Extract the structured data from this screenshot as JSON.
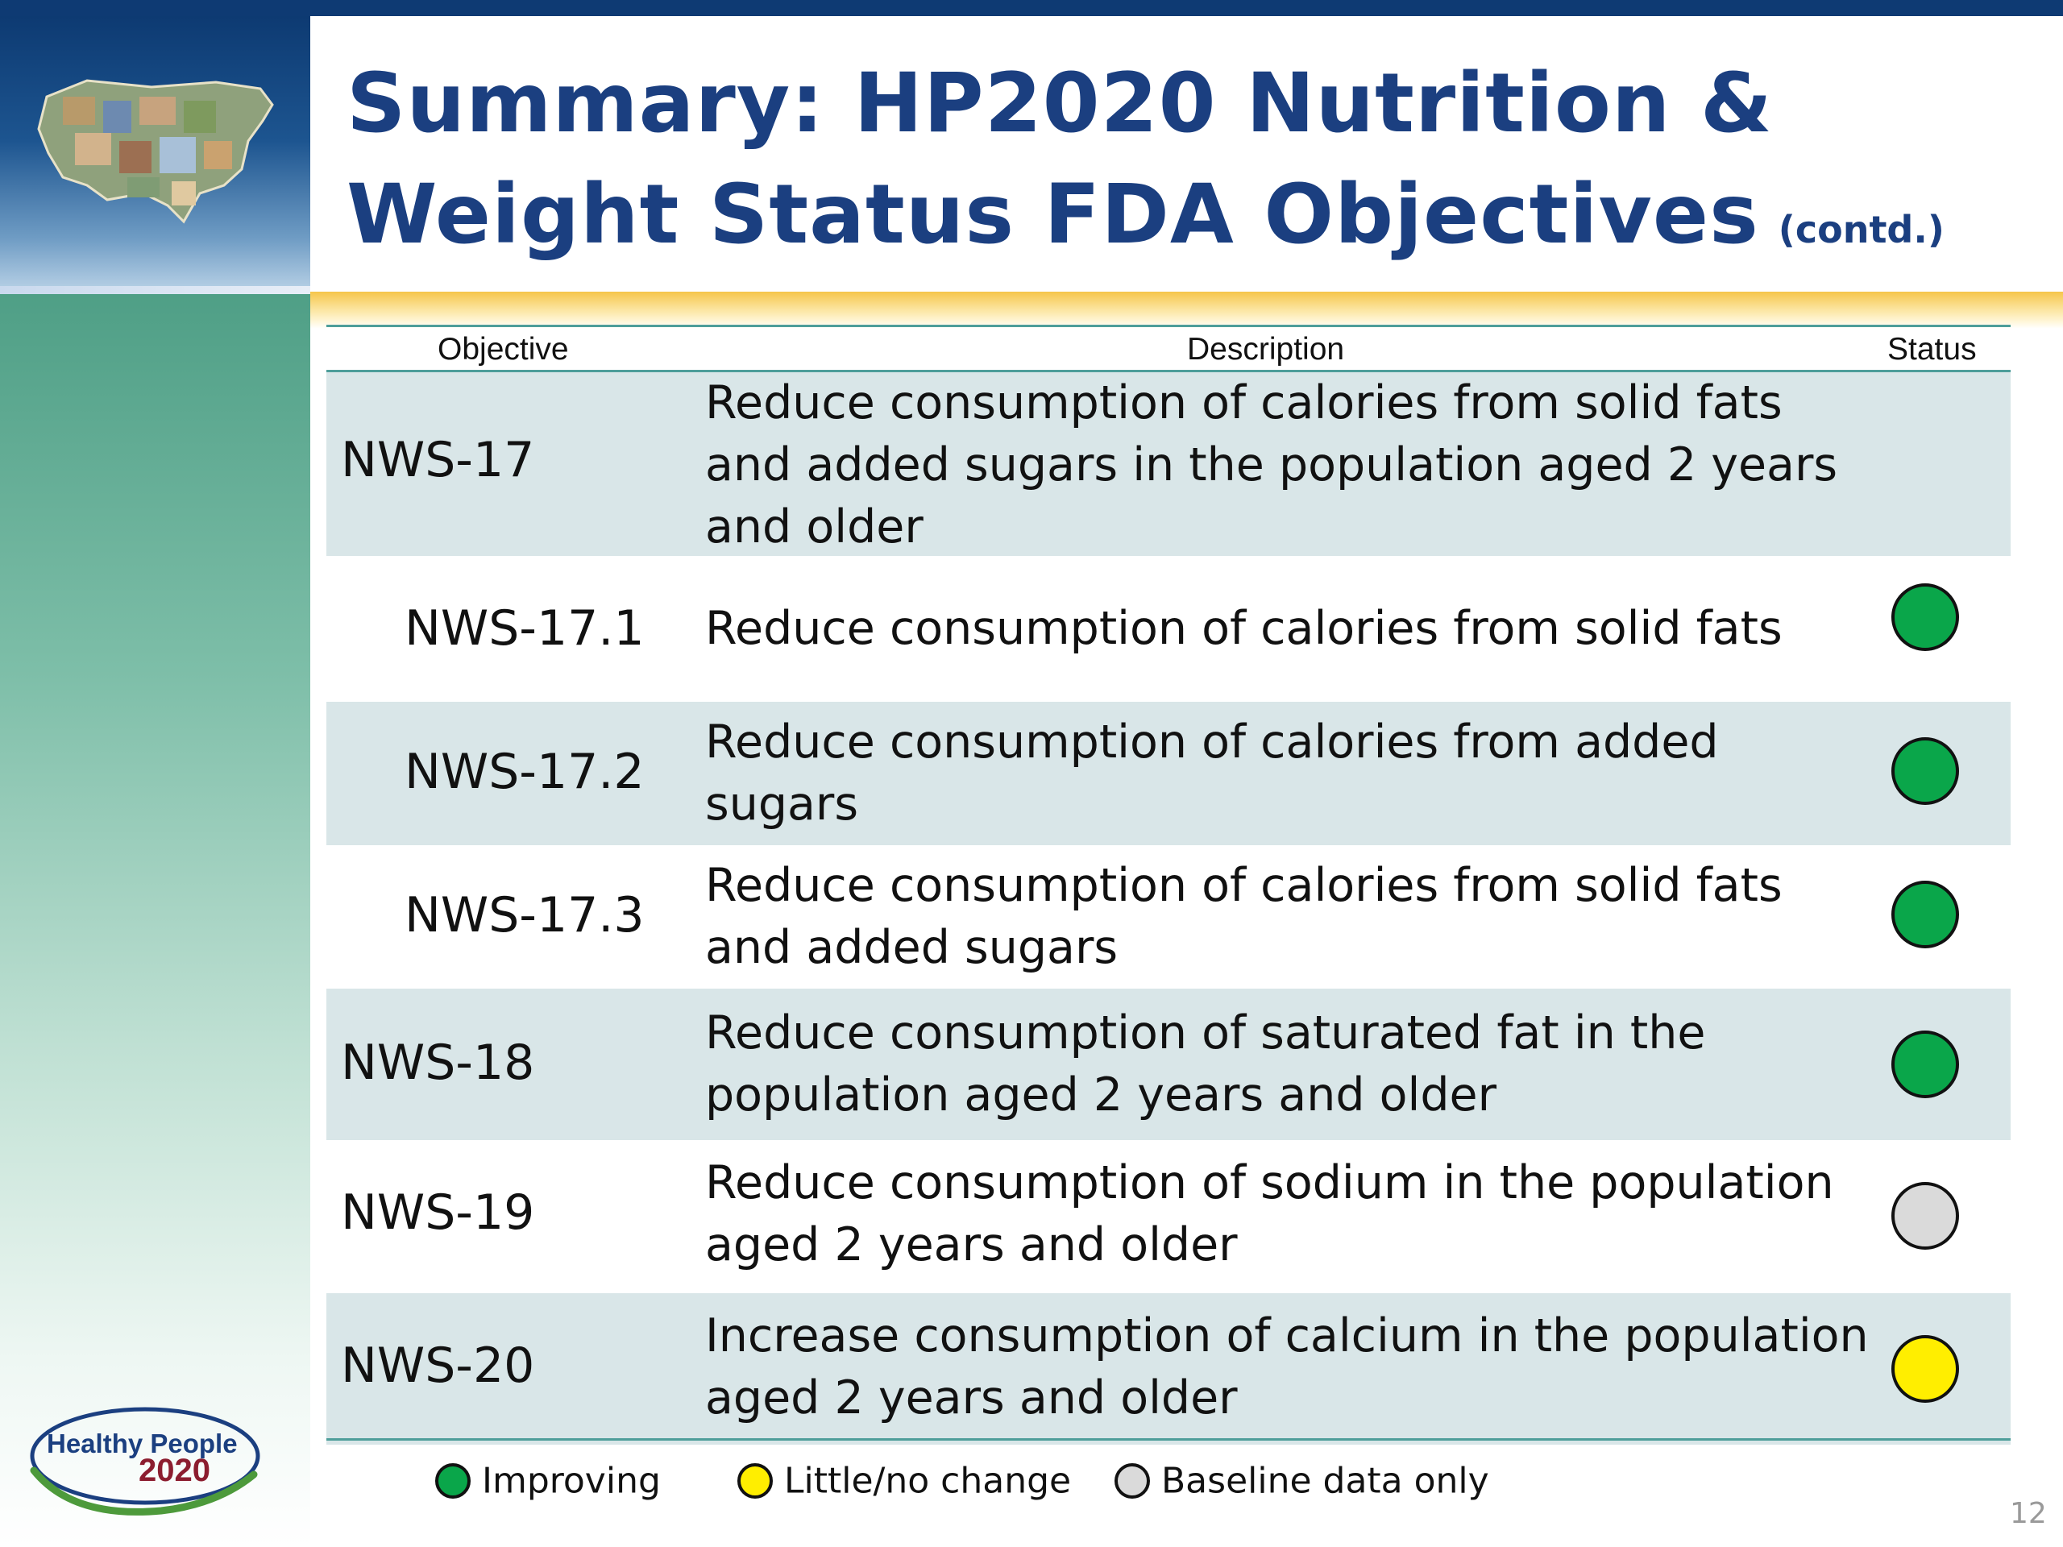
{
  "slide": {
    "title_line1": "Summary:  HP2020 Nutrition &",
    "title_line2": "Weight Status FDA Objectives",
    "title_suffix": "(contd.)",
    "page_number": "12"
  },
  "table": {
    "headers": {
      "objective": "Objective",
      "description": "Description",
      "status": "Status"
    },
    "rows": [
      {
        "objective": "NWS-17",
        "description": "Reduce consumption of calories from solid fats and added sugars in the population aged 2 years and older",
        "status": ""
      },
      {
        "objective": "NWS-17.1",
        "description": "Reduce consumption of calories from solid fats",
        "status": "Improving"
      },
      {
        "objective": "NWS-17.2",
        "description": "Reduce consumption of calories from added sugars",
        "status": "Improving"
      },
      {
        "objective": "NWS-17.3",
        "description": "Reduce consumption of calories from solid fats and added sugars",
        "status": "Improving"
      },
      {
        "objective": "NWS-18",
        "description": "Reduce consumption of saturated fat in the population aged 2 years and older",
        "status": "Improving"
      },
      {
        "objective": "NWS-19",
        "description": "Reduce consumption of sodium in the population aged 2 years and older",
        "status": "Baseline data only"
      },
      {
        "objective": "NWS-20",
        "description": "Increase consumption of calcium in the population aged 2 years and older",
        "status": "Little/no change"
      }
    ]
  },
  "legend": {
    "improving": "Improving",
    "little_change": "Little/no change",
    "baseline": "Baseline data only"
  },
  "colors": {
    "improving": "#0aa64a",
    "little_change": "#ffee00",
    "baseline": "#dadada"
  },
  "logo": {
    "line1": "Healthy People",
    "line2": "2020"
  }
}
